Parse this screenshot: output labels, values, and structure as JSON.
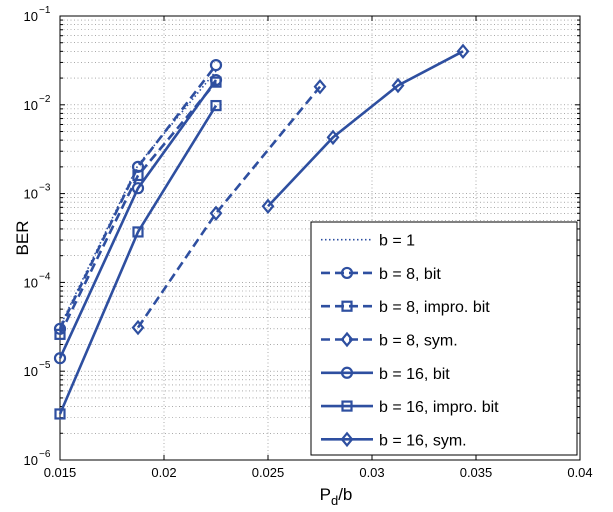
{
  "chart_data": {
    "type": "line",
    "title": "",
    "xlabel": "P_d/b",
    "ylabel": "BER",
    "xlim": [
      0.015,
      0.04
    ],
    "ylim": [
      1e-06,
      0.1
    ],
    "yscale": "log",
    "grid": true,
    "legend_position": "bottom-right",
    "x_ticks": [
      0.015,
      0.02,
      0.025,
      0.03,
      0.035,
      0.04
    ],
    "x_tick_labels": [
      "0.015",
      "0.02",
      "0.025",
      "0.03",
      "0.035",
      "0.04"
    ],
    "y_ticks": [
      1e-06,
      1e-05,
      0.0001,
      0.001,
      0.01,
      0.1
    ],
    "y_tick_mantissa": [
      "10",
      "10",
      "10",
      "10",
      "10",
      "10"
    ],
    "y_tick_exponents": [
      "−6",
      "−5",
      "−4",
      "−3",
      "−2",
      "−1"
    ],
    "line_color": "#2e4fa0",
    "series": [
      {
        "name": "b = 1",
        "style": "dotted",
        "marker": "none",
        "x": [
          0.015,
          0.01875,
          0.0225
        ],
        "y": [
          3.2e-05,
          0.0021,
          0.024
        ]
      },
      {
        "name": "b = 8, bit",
        "style": "dashed",
        "marker": "circle",
        "x": [
          0.015,
          0.01875,
          0.0225
        ],
        "y": [
          3e-05,
          0.002,
          0.028
        ]
      },
      {
        "name": "b = 8, impro. bit",
        "style": "dashed",
        "marker": "square",
        "x": [
          0.015,
          0.01875,
          0.0225
        ],
        "y": [
          2.6e-05,
          0.0016,
          0.018
        ]
      },
      {
        "name": "b = 8, sym.",
        "style": "dashed",
        "marker": "diamond",
        "x": [
          0.01875,
          0.0225,
          0.0275
        ],
        "y": [
          3.1e-05,
          0.0006,
          0.016
        ]
      },
      {
        "name": "b = 16, bit",
        "style": "solid",
        "marker": "circle",
        "x": [
          0.015,
          0.01875,
          0.0225
        ],
        "y": [
          1.4e-05,
          0.00115,
          0.019
        ]
      },
      {
        "name": "b = 16, impro. bit",
        "style": "solid",
        "marker": "square",
        "x": [
          0.015,
          0.01875,
          0.0225
        ],
        "y": [
          3.3e-06,
          0.00037,
          0.0098
        ]
      },
      {
        "name": "b = 16, sym.",
        "style": "solid",
        "marker": "diamond",
        "x": [
          0.025,
          0.028125,
          0.03125,
          0.034375
        ],
        "y": [
          0.00072,
          0.0043,
          0.0165,
          0.04
        ]
      }
    ]
  }
}
